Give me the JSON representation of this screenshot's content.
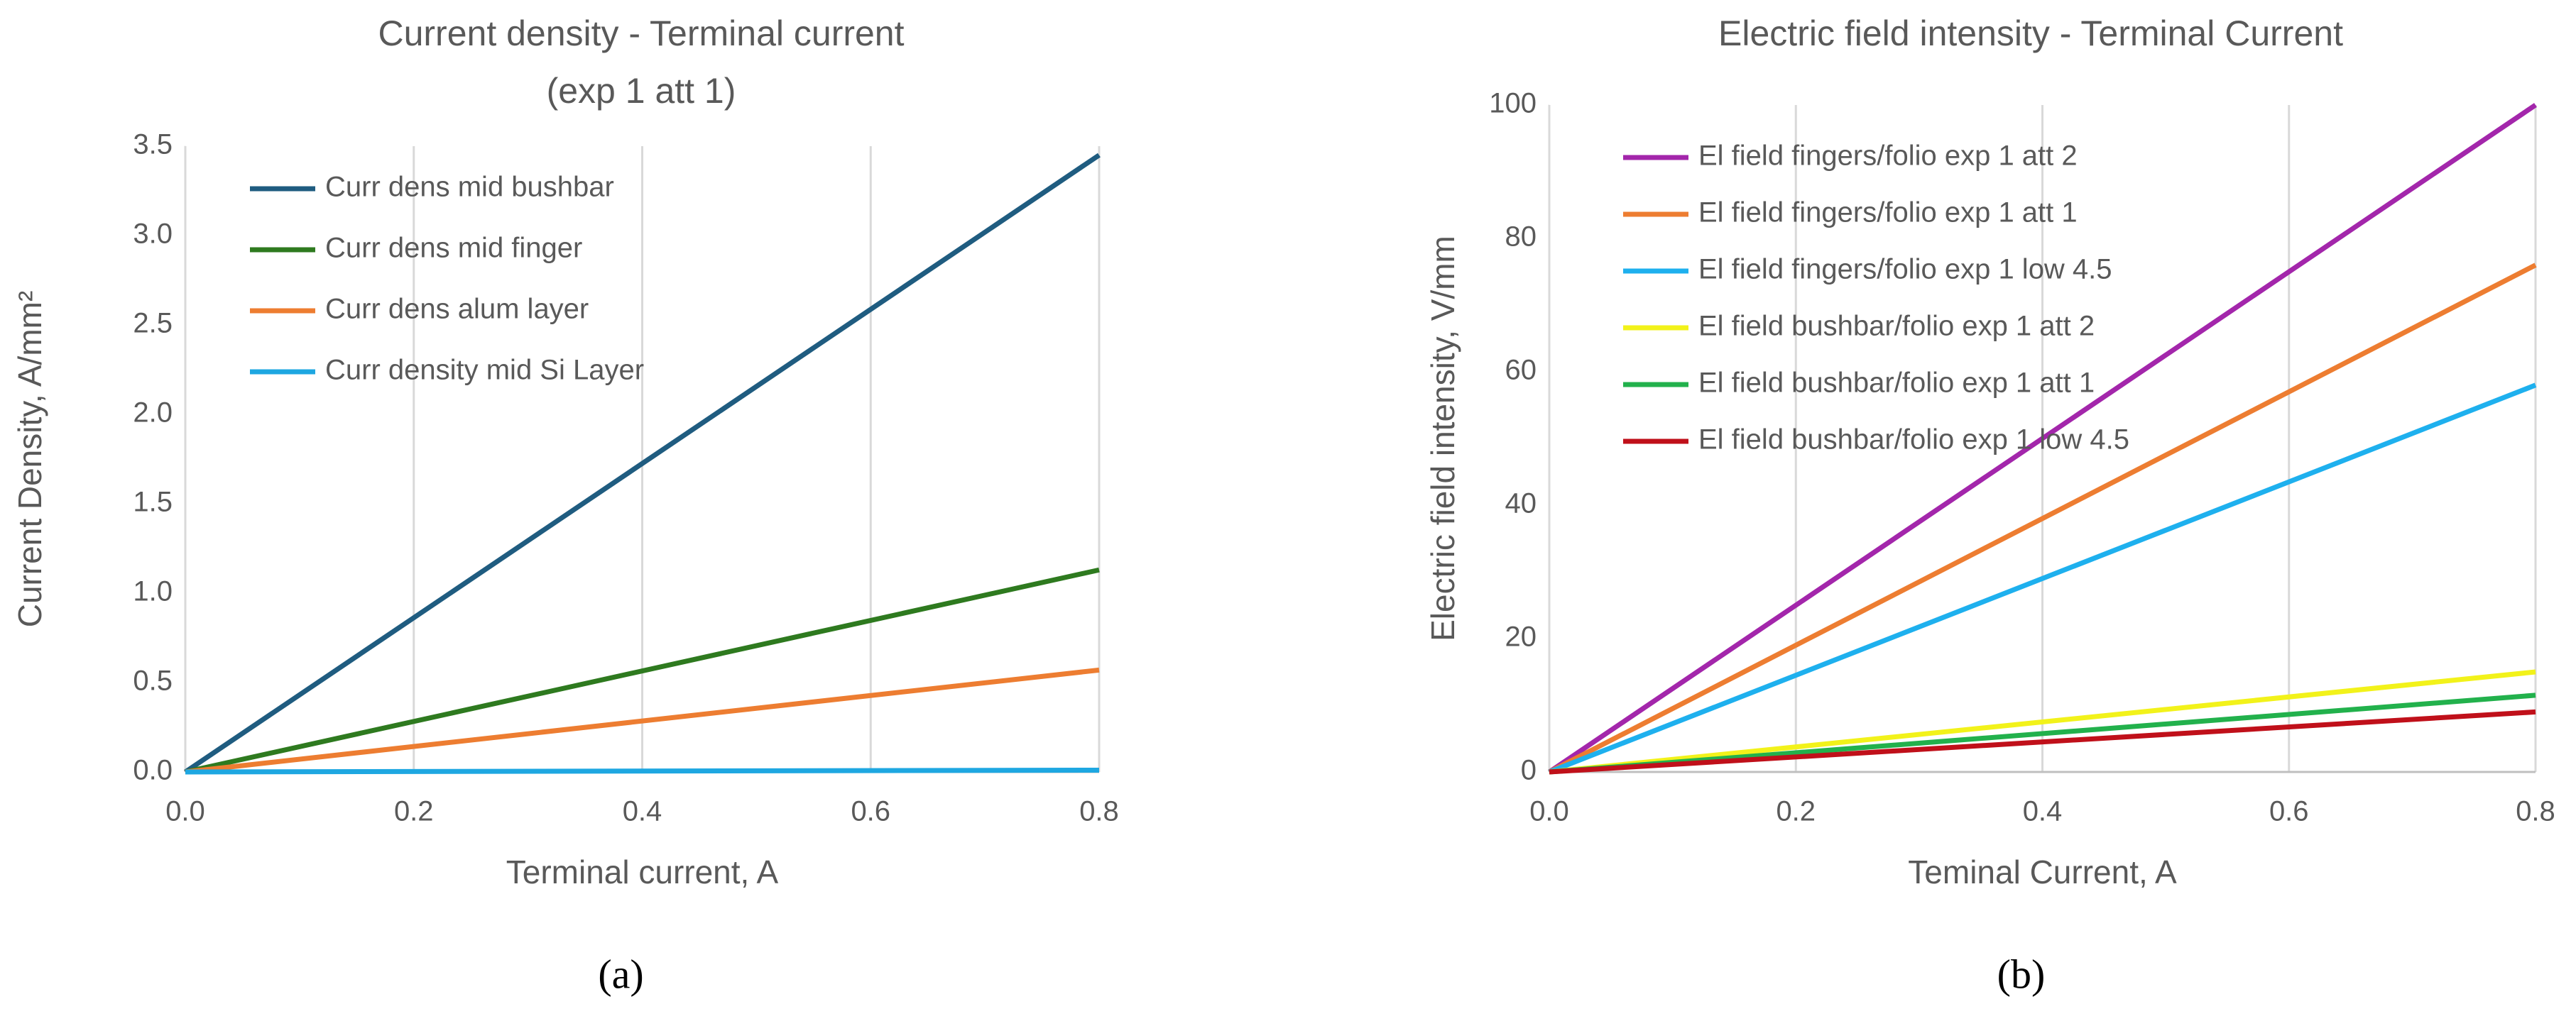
{
  "chart_data": [
    {
      "type": "line",
      "title": "Current density - Terminal current",
      "subtitle": "(exp 1 att 1)",
      "x_label": "Terminal current, A",
      "y_label": "Current Density, A/mm²",
      "caption": "(a)",
      "x": [
        0,
        0.8
      ],
      "series": [
        {
          "name": "Curr dens mid bushbar",
          "color": "#1f5c80",
          "values": [
            0,
            3.45
          ]
        },
        {
          "name": "Curr dens mid finger",
          "color": "#2e7a1f",
          "values": [
            0,
            1.13
          ]
        },
        {
          "name": "Curr dens alum layer",
          "color": "#ed7d31",
          "values": [
            0,
            0.57
          ]
        },
        {
          "name": "Curr density mid Si Layer",
          "color": "#1ea7e1",
          "values": [
            0,
            0.01
          ]
        }
      ],
      "xlim": [
        0,
        0.8
      ],
      "xticks": [
        {
          "value": 0,
          "label": "0.0"
        },
        0.2,
        0.4,
        0.6,
        0.8
      ],
      "ylim": [
        0,
        3.5
      ],
      "yticks": [
        {
          "value": 0,
          "label": "0.0"
        },
        0.5,
        {
          "value": 1,
          "label": "1.0"
        },
        1.5,
        {
          "value": 2,
          "label": "2.0"
        },
        2.5,
        {
          "value": 3,
          "label": "3.0"
        },
        3.5
      ],
      "grid": true
    },
    {
      "type": "line",
      "title": "Electric field intensity - Terminal Current",
      "x_label": "Teminal Current, A",
      "y_label": "Electric field intensity, V/mm",
      "caption": "(b)",
      "x": [
        0,
        0.8
      ],
      "series": [
        {
          "name": "El field fingers/folio exp 1 att 2",
          "color": "#a326ab",
          "values": [
            0,
            100
          ]
        },
        {
          "name": "El field fingers/folio exp 1 att 1",
          "color": "#ed7d31",
          "values": [
            0,
            76
          ]
        },
        {
          "name": "El field fingers/folio exp 1 low 4.5",
          "color": "#1eb0ee",
          "values": [
            0,
            58
          ]
        },
        {
          "name": "El field bushbar/folio exp 1 att 2",
          "color": "#f2f21a",
          "values": [
            0,
            15
          ]
        },
        {
          "name": "El field bushbar/folio exp 1 att 1",
          "color": "#22b14c",
          "values": [
            0,
            11.5
          ]
        },
        {
          "name": "El field bushbar/folio exp 1 low 4.5",
          "color": "#c0101a",
          "values": [
            0,
            9
          ]
        }
      ],
      "xlim": [
        0,
        0.8
      ],
      "xticks": [
        {
          "value": 0,
          "label": "0.0"
        },
        0.2,
        0.4,
        0.6,
        0.8
      ],
      "ylim": [
        0,
        100
      ],
      "yticks": [
        0,
        20,
        40,
        60,
        80,
        100
      ],
      "grid": true
    }
  ]
}
